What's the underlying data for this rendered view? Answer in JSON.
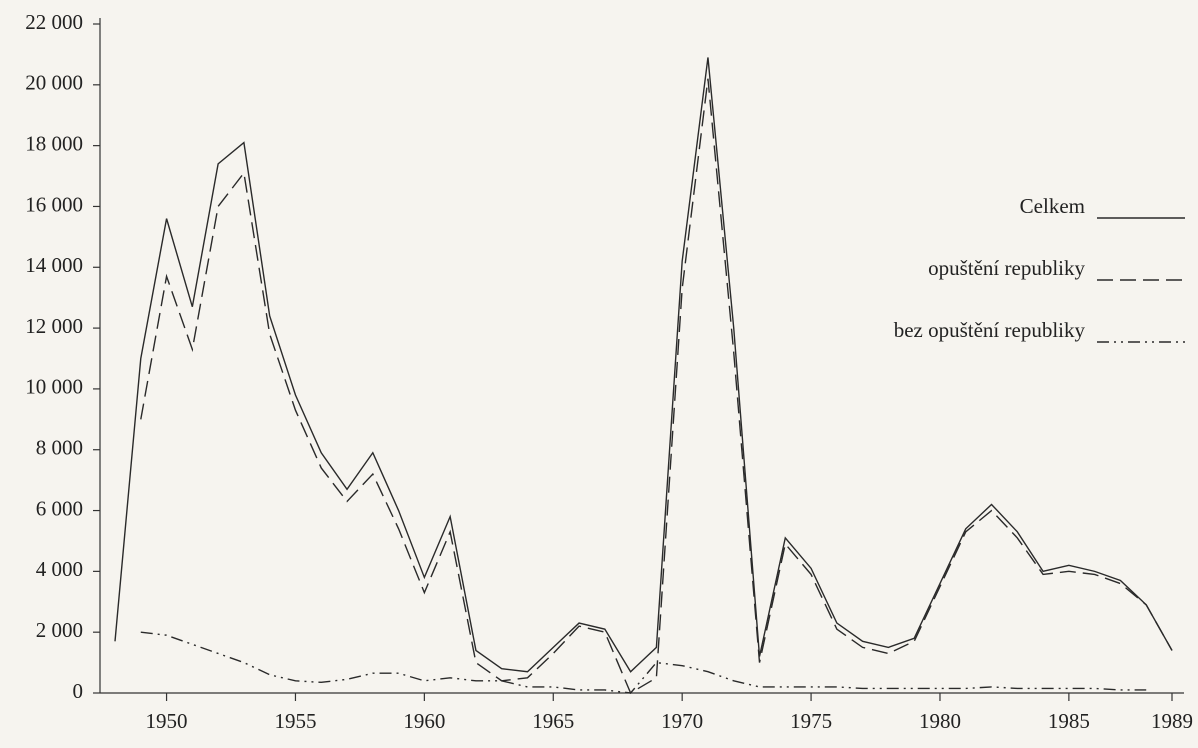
{
  "chart_data": {
    "type": "line",
    "x": [
      1948,
      1949,
      1950,
      1951,
      1952,
      1953,
      1954,
      1955,
      1956,
      1957,
      1958,
      1959,
      1960,
      1961,
      1962,
      1963,
      1964,
      1965,
      1966,
      1967,
      1968,
      1969,
      1970,
      1971,
      1972,
      1973,
      1974,
      1975,
      1976,
      1977,
      1978,
      1979,
      1980,
      1981,
      1982,
      1983,
      1984,
      1985,
      1986,
      1987,
      1988,
      1989
    ],
    "series": [
      {
        "name": "Celkem",
        "color": "#2a2a2a",
        "dash": "solid",
        "values": [
          1700,
          11000,
          15600,
          12700,
          17400,
          18100,
          12400,
          9800,
          7900,
          6700,
          7900,
          6000,
          3800,
          5800,
          1400,
          800,
          700,
          1500,
          2300,
          2100,
          700,
          1500,
          14200,
          20900,
          12000,
          1200,
          5100,
          4100,
          2300,
          1700,
          1500,
          1800,
          3600,
          5400,
          6200,
          5300,
          4000,
          4200,
          4000,
          3700,
          2900,
          1400
        ]
      },
      {
        "name": "opuštění republiky",
        "color": "#2a2a2a",
        "dash": "dashed",
        "values": [
          null,
          9000,
          13700,
          11300,
          16000,
          17100,
          11800,
          9300,
          7400,
          6300,
          7200,
          5400,
          3300,
          5300,
          1000,
          400,
          500,
          1300,
          2200,
          2000,
          0,
          500,
          13300,
          20200,
          11200,
          1000,
          4900,
          3900,
          2100,
          1500,
          1300,
          1700,
          3500,
          5300,
          6000,
          5100,
          3900,
          4000,
          3900,
          3600,
          2900,
          1400
        ]
      },
      {
        "name": "bez opuštění republiky",
        "color": "#2a2a2a",
        "dash": "dashdot",
        "values": [
          null,
          2000,
          1900,
          1600,
          1300,
          1000,
          600,
          400,
          350,
          450,
          650,
          650,
          400,
          500,
          400,
          400,
          200,
          200,
          100,
          100,
          0,
          1000,
          900,
          700,
          400,
          200,
          200,
          200,
          200,
          150,
          150,
          150,
          150,
          150,
          200,
          150,
          150,
          150,
          150,
          100,
          100,
          null
        ]
      }
    ],
    "xlim": [
      1948,
      1989
    ],
    "xticks": [
      1950,
      1955,
      1960,
      1965,
      1970,
      1975,
      1980,
      1985,
      1989
    ],
    "ylim": [
      0,
      22000
    ],
    "yticks": [
      0,
      {
        "value": 2000,
        "label": "2 000"
      },
      {
        "value": 4000,
        "label": "4 000"
      },
      {
        "value": 6000,
        "label": "6 000"
      },
      {
        "value": 8000,
        "label": "8 000"
      },
      {
        "value": 10000,
        "label": "10 000"
      },
      {
        "value": 12000,
        "label": "12 000"
      },
      {
        "value": 14000,
        "label": "14 000"
      },
      {
        "value": 16000,
        "label": "16 000"
      },
      {
        "value": 18000,
        "label": "18 000"
      },
      {
        "value": 20000,
        "label": "20 000"
      },
      {
        "value": 22000,
        "label": "22 000"
      }
    ],
    "legend": "right",
    "grid": false
  }
}
